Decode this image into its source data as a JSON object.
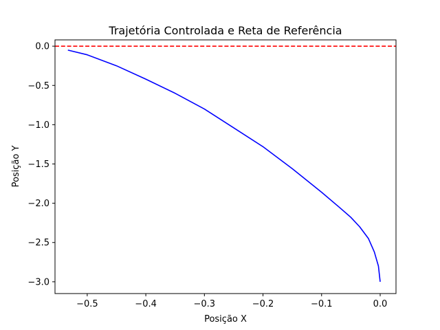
{
  "chart_data": {
    "type": "line",
    "title": "Trajetória Controlada e Reta de Referência",
    "xlabel": "Posição X",
    "ylabel": "Posição Y",
    "xlim": [
      -0.555,
      0.027
    ],
    "ylim": [
      -3.15,
      0.08
    ],
    "x_ticks": [
      -0.5,
      -0.4,
      -0.3,
      -0.2,
      -0.1,
      0.0
    ],
    "x_tick_labels": [
      "−0.5",
      "−0.4",
      "−0.3",
      "−0.2",
      "−0.1",
      "0.0"
    ],
    "y_ticks": [
      0.0,
      -0.5,
      -1.0,
      -1.5,
      -2.0,
      -2.5,
      -3.0
    ],
    "y_tick_labels": [
      "0.0",
      "−0.5",
      "−1.0",
      "−1.5",
      "−2.0",
      "−2.5",
      "−3.0"
    ],
    "grid": false,
    "series": [
      {
        "style": "solid",
        "color": "#0000ff",
        "x": [
          0.0,
          -0.003,
          -0.01,
          -0.02,
          -0.035,
          -0.05,
          -0.07,
          -0.1,
          -0.15,
          -0.2,
          -0.25,
          -0.3,
          -0.35,
          -0.4,
          -0.45,
          -0.5,
          -0.533
        ],
        "y": [
          -3.0,
          -2.8,
          -2.62,
          -2.45,
          -2.3,
          -2.18,
          -2.05,
          -1.86,
          -1.56,
          -1.28,
          -1.04,
          -0.8,
          -0.6,
          -0.42,
          -0.25,
          -0.11,
          -0.05
        ]
      },
      {
        "style": "dashed",
        "color": "#ff0000",
        "x": [
          -0.555,
          0.027
        ],
        "y": [
          0.0,
          0.0
        ]
      }
    ]
  }
}
